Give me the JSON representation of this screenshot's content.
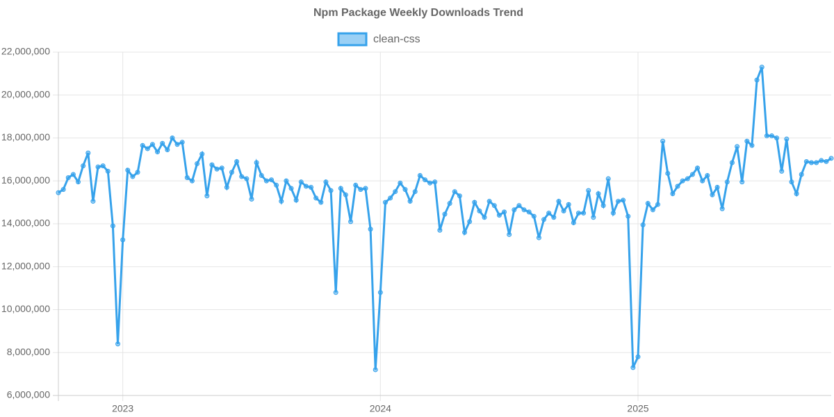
{
  "chart_data": {
    "type": "line",
    "title": "Npm Package Weekly Downloads Trend",
    "categories": [
      null,
      null,
      null,
      null,
      null,
      null,
      null,
      null,
      null,
      null,
      null,
      null,
      null,
      "2023",
      null,
      null,
      null,
      null,
      null,
      null,
      null,
      null,
      null,
      null,
      null,
      null,
      null,
      null,
      null,
      null,
      null,
      null,
      null,
      null,
      null,
      null,
      null,
      null,
      null,
      null,
      null,
      null,
      null,
      null,
      null,
      null,
      null,
      null,
      null,
      null,
      null,
      null,
      null,
      null,
      null,
      null,
      null,
      null,
      null,
      null,
      null,
      null,
      null,
      null,
      null,
      "2024",
      null,
      null,
      null,
      null,
      null,
      null,
      null,
      null,
      null,
      null,
      null,
      null,
      null,
      null,
      null,
      null,
      null,
      null,
      null,
      null,
      null,
      null,
      null,
      null,
      null,
      null,
      null,
      null,
      null,
      null,
      null,
      null,
      null,
      null,
      null,
      null,
      null,
      null,
      null,
      null,
      null,
      null,
      null,
      null,
      null,
      null,
      null,
      null,
      null,
      null,
      null,
      "2025",
      null,
      null,
      null,
      null,
      null,
      null,
      null,
      null,
      null,
      null,
      null,
      null,
      null,
      null,
      null,
      null,
      null,
      null,
      null,
      null,
      null,
      null,
      null,
      null,
      null,
      null,
      null,
      null,
      null,
      null,
      null,
      null,
      null,
      null,
      null,
      null,
      null,
      null,
      null
    ],
    "series": [
      {
        "name": "clean-css",
        "color": "#36a2eb",
        "values": [
          15450000,
          15600000,
          16150000,
          16300000,
          15950000,
          16700000,
          17300000,
          15050000,
          16650000,
          16700000,
          16450000,
          13900000,
          8400000,
          13250000,
          16500000,
          16200000,
          16400000,
          17650000,
          17500000,
          17700000,
          17350000,
          17750000,
          17450000,
          18000000,
          17700000,
          17800000,
          16150000,
          16000000,
          16800000,
          17250000,
          15300000,
          16750000,
          16550000,
          16600000,
          15700000,
          16400000,
          16900000,
          16200000,
          16100000,
          15150000,
          16850000,
          16250000,
          16000000,
          16050000,
          15800000,
          15050000,
          16000000,
          15650000,
          15100000,
          15950000,
          15750000,
          15700000,
          15200000,
          15000000,
          15950000,
          15550000,
          10800000,
          15650000,
          15350000,
          14100000,
          15800000,
          15600000,
          15650000,
          13750000,
          7200000,
          10800000,
          15000000,
          15200000,
          15500000,
          15900000,
          15600000,
          15050000,
          15500000,
          16250000,
          16050000,
          15900000,
          15950000,
          13700000,
          14450000,
          14950000,
          15500000,
          15300000,
          13600000,
          14100000,
          15000000,
          14600000,
          14300000,
          15050000,
          14850000,
          14400000,
          14550000,
          13500000,
          14650000,
          14850000,
          14650000,
          14550000,
          14350000,
          13350000,
          14200000,
          14500000,
          14300000,
          15050000,
          14600000,
          14900000,
          14050000,
          14500000,
          14500000,
          15550000,
          14300000,
          15400000,
          14850000,
          16100000,
          14500000,
          15050000,
          15100000,
          14350000,
          7300000,
          7800000,
          13950000,
          14950000,
          14650000,
          14900000,
          17850000,
          16350000,
          15400000,
          15750000,
          16000000,
          16100000,
          16300000,
          16600000,
          16000000,
          16250000,
          15350000,
          15700000,
          14700000,
          15950000,
          16850000,
          17600000,
          15950000,
          17850000,
          17650000,
          20700000,
          21300000,
          18100000,
          18100000,
          18000000,
          16450000,
          17950000,
          15950000,
          15400000,
          16300000,
          16900000,
          16850000,
          16850000,
          16950000,
          16900000,
          17050000
        ]
      }
    ],
    "ylim": [
      6000000,
      22000000
    ],
    "yticks": [
      {
        "value": 6000000,
        "label": "6,000,000"
      },
      {
        "value": 8000000,
        "label": "8,000,000"
      },
      {
        "value": 10000000,
        "label": "10,000,000"
      },
      {
        "value": 12000000,
        "label": "12,000,000"
      },
      {
        "value": 14000000,
        "label": "14,000,000"
      },
      {
        "value": 16000000,
        "label": "16,000,000"
      },
      {
        "value": 18000000,
        "label": "18,000,000"
      },
      {
        "value": 20000000,
        "label": "20,000,000"
      },
      {
        "value": 22000000,
        "label": "22,000,000"
      }
    ],
    "grid": true,
    "legend": "top"
  }
}
